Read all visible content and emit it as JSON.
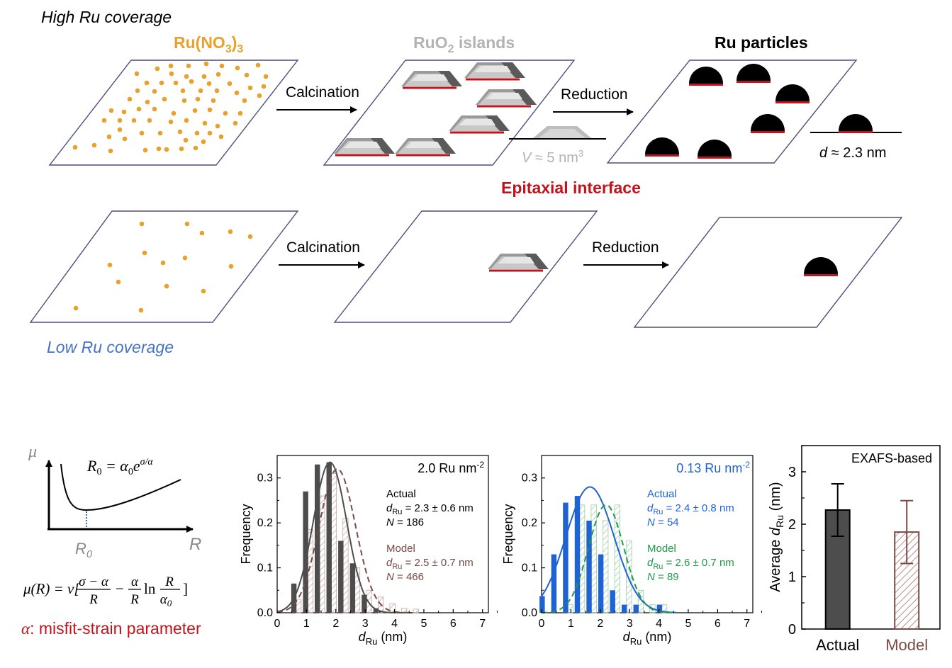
{
  "schematic": {
    "high_label": "High Ru coverage",
    "low_label": "Low Ru coverage",
    "precursor_label": "Ru(NO",
    "precursor_sub1": "3",
    "precursor_close": ")",
    "precursor_sub2": "3",
    "islands_label_pre": "RuO",
    "islands_sub": "2",
    "islands_label_post": " islands",
    "particles_label": "Ru particles",
    "calcination": "Calcination",
    "reduction": "Reduction",
    "volume_var": "V",
    "volume_approx": " ≈ 5 nm",
    "volume_sup": "3",
    "diameter_var": "d",
    "diameter_val": " ≈ 2.3 nm",
    "epitaxial": "Epitaxial interface",
    "colors": {
      "precursor": "#e8a12a",
      "islands_label": "#b3b3b3",
      "epitaxial": "#c0141c",
      "low": "#4472c4",
      "plane": "#4a4f7a"
    }
  },
  "energy_plot": {
    "y_symbol": "μ",
    "x_symbol": "R",
    "min_label": "R",
    "min_sub": "0",
    "r0_eq_lhs": "R",
    "r0_eq_lhs_sub": "0",
    "r0_eq_rhs": " = α",
    "r0_eq_rhs_sub": "0",
    "r0_eq_e": "e",
    "r0_eq_exp": "σ/α",
    "mu_eq_lhs": "μ(R) = ν[",
    "frac1_num": "σ − α",
    "frac1_den": "R",
    "minus": "−",
    "frac2_num": "α",
    "frac2_den": "R",
    "ln": "ln",
    "frac3_num": "R",
    "frac3_den": "α",
    "frac3_den_sub": "0",
    "close": "]",
    "alpha_symbol": "α",
    "alpha_text": ": misfit-strain parameter"
  },
  "chart_data": [
    {
      "type": "bar",
      "coverage_label": "2.0 Ru nm",
      "coverage_sup": "-2",
      "xlabel_main": "d",
      "xlabel_sub": "Ru",
      "xlabel_unit": " (nm)",
      "ylabel": "Frequency",
      "xlim": [
        0,
        7.2
      ],
      "ylim": [
        0,
        0.35
      ],
      "xticks": [
        "0",
        "1",
        "2",
        "3",
        "4",
        "5",
        "6",
        "7"
      ],
      "yticks": [
        "0.0",
        "0.1",
        "0.2",
        "0.3"
      ],
      "bin_centers": [
        0.65,
        1.05,
        1.45,
        1.85,
        2.25,
        2.65,
        3.05,
        3.45,
        3.85,
        4.25,
        4.65
      ],
      "series": [
        {
          "name": "Actual",
          "values": [
            0.065,
            0.27,
            0.33,
            0.335,
            0.16,
            0.11,
            0.04,
            0.01,
            0.0,
            0.0,
            0.0
          ],
          "color": "#4d4d4d",
          "fit_mean": 1.8,
          "fit_sd": 0.57,
          "fit_peak": 0.335
        },
        {
          "name": "Model",
          "values": [
            0.03,
            0.185,
            0.26,
            0.31,
            0.21,
            0.1,
            0.05,
            0.035,
            0.02,
            0.01,
            0.008
          ],
          "color": "#7a4a46",
          "fit_mean": 2.05,
          "fit_sd": 0.62,
          "fit_peak": 0.32
        }
      ],
      "legend": [
        {
          "title": "Actual",
          "var": "d",
          "sub": "Ru",
          "value": " = 2.3 ± 0.6 nm",
          "nvar": "N",
          "n": " = 186",
          "color": "#000000"
        },
        {
          "title": "Model",
          "var": "d",
          "sub": "Ru",
          "value": " = 2.5 ± 0.7 nm",
          "nvar": "N",
          "n": " = 466",
          "color": "#7a4a46"
        }
      ]
    },
    {
      "type": "bar",
      "coverage_label": "0.13 Ru nm",
      "coverage_sup": "-2",
      "xlabel_main": "d",
      "xlabel_sub": "Ru",
      "xlabel_unit": " (nm)",
      "ylabel": "Frequency",
      "xlim": [
        0,
        7.2
      ],
      "ylim": [
        0,
        0.35
      ],
      "xticks": [
        "0",
        "1",
        "2",
        "3",
        "4",
        "5",
        "6",
        "7"
      ],
      "yticks": [
        "0.0",
        "0.1",
        "0.2",
        "0.3"
      ],
      "bin_centers": [
        0.1,
        0.5,
        0.9,
        1.3,
        1.7,
        2.1,
        2.5,
        2.9,
        3.3,
        3.7,
        4.1
      ],
      "series": [
        {
          "name": "Actual",
          "values": [
            0.037,
            0.13,
            0.245,
            0.26,
            0.205,
            0.13,
            0.05,
            0.018,
            0.018,
            0.0,
            0.018
          ],
          "color": "#1f62d4",
          "fit_mean": 1.65,
          "fit_sd": 0.82,
          "fit_peak": 0.28
        },
        {
          "name": "Model",
          "values": [
            0.0,
            0.0,
            0.018,
            0.24,
            0.24,
            0.205,
            0.24,
            0.16,
            0.05,
            0.018,
            0.018
          ],
          "color": "#1e9a4a",
          "fit_mean": 2.2,
          "fit_sd": 0.6,
          "fit_peak": 0.24
        }
      ],
      "legend": [
        {
          "title": "Actual",
          "var": "d",
          "sub": "Ru",
          "value": " = 2.4 ± 0.8 nm",
          "nvar": "N",
          "n": " = 54",
          "color": "#1f62d4"
        },
        {
          "title": "Model",
          "var": "d",
          "sub": "Ru",
          "value": " = 2.6 ± 0.7 nm",
          "nvar": "N",
          "n": " = 89",
          "color": "#1e9a4a"
        }
      ]
    },
    {
      "type": "bar",
      "title": "EXAFS-based",
      "ylabel_main": "Average ",
      "ylabel_var": "d",
      "ylabel_sub": "Ru",
      "ylabel_unit": " (nm)",
      "ylim": [
        0,
        3.5
      ],
      "yticks": [
        "0",
        "1",
        "2",
        "3"
      ],
      "categories": [
        "Actual",
        "Model"
      ],
      "values": [
        2.27,
        1.85
      ],
      "errors": [
        0.5,
        0.6
      ],
      "colors": [
        "#4d4d4d",
        "#7a4a46"
      ]
    }
  ]
}
